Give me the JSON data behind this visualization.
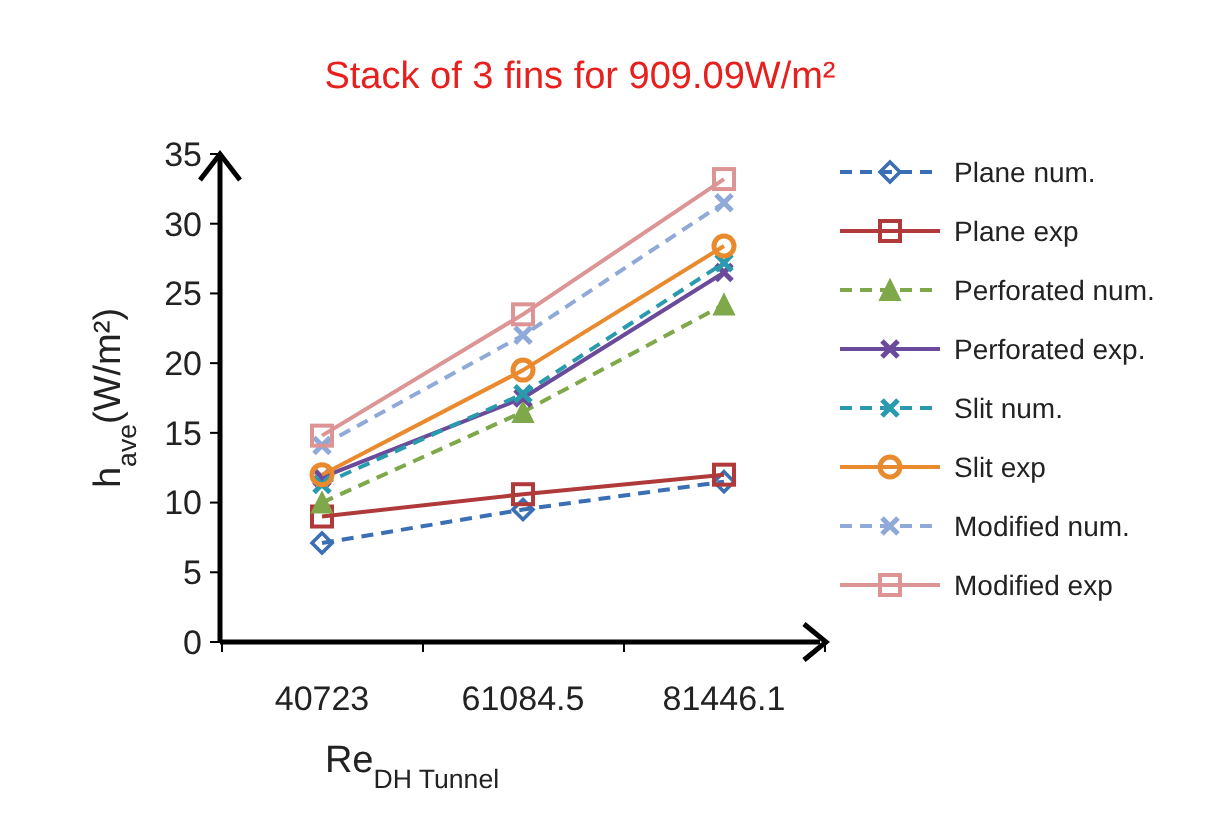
{
  "chart_data": {
    "type": "line",
    "title": "Stack of 3  fins for 909.09W/m²",
    "xlabel": "Re$_{DH Tunnel}$",
    "ylabel": "h$_{ave}$(W/m²)",
    "categories": [
      "40723",
      "61084.5",
      "81446.1"
    ],
    "ylim": [
      0,
      35
    ],
    "yticks": [
      0,
      5,
      10,
      15,
      20,
      25,
      30,
      35
    ],
    "grid": false,
    "legend": "right",
    "series": [
      {
        "name": "Plane num.",
        "color": "#3a6fb5",
        "values": [
          7.1,
          9.5,
          11.5
        ],
        "marker": "diamond",
        "line_style": "dashed"
      },
      {
        "name": "Plane exp",
        "color": "#b03a3a",
        "values": [
          9.0,
          10.6,
          12.0
        ],
        "marker": "square",
        "line_style": "solid"
      },
      {
        "name": "Perforated num.",
        "color": "#7fa84a",
        "values": [
          10.0,
          16.5,
          24.2
        ],
        "marker": "triangle",
        "line_style": "dashed"
      },
      {
        "name": "Perforated exp.",
        "color": "#6a4a9a",
        "values": [
          11.8,
          17.5,
          26.5
        ],
        "marker": "cross",
        "line_style": "solid"
      },
      {
        "name": "Slit num.",
        "color": "#2a9aae",
        "values": [
          11.3,
          17.8,
          27.2
        ],
        "marker": "cross",
        "line_style": "dashed"
      },
      {
        "name": "Slit exp",
        "color": "#e98a2e",
        "values": [
          12.0,
          19.5,
          28.4
        ],
        "marker": "circle",
        "line_style": "solid"
      },
      {
        "name": "Modified num.",
        "color": "#8fa9d9",
        "values": [
          14.1,
          22.0,
          31.5
        ],
        "marker": "cross",
        "line_style": "dashed"
      },
      {
        "name": "Modified exp",
        "color": "#dc9494",
        "values": [
          14.8,
          23.5,
          33.2
        ],
        "marker": "square",
        "line_style": "solid"
      }
    ]
  }
}
